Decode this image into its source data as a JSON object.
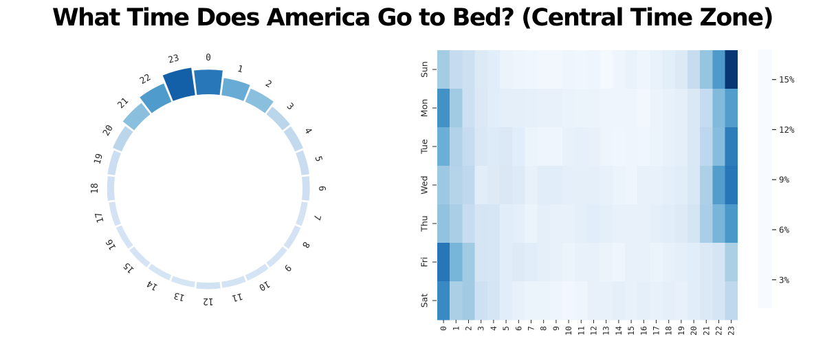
{
  "title": "What Time Does America Go to Bed? (Central Time Zone)",
  "colors": {
    "background": "#ffffff",
    "title_color": "#000000",
    "tick_color": "#262626",
    "colormap_name": "Blues",
    "blues_colormap_stops": [
      [
        0.0,
        "#f7fbff"
      ],
      [
        0.125,
        "#deebf7"
      ],
      [
        0.25,
        "#c6dbef"
      ],
      [
        0.375,
        "#9ecae1"
      ],
      [
        0.5,
        "#6baed6"
      ],
      [
        0.625,
        "#4292c6"
      ],
      [
        0.75,
        "#2171b5"
      ],
      [
        0.875,
        "#08519c"
      ],
      [
        1.0,
        "#08306b"
      ]
    ]
  },
  "chart_data": [
    {
      "type": "bar",
      "subtype": "polar-clock",
      "name": "bedtime-share-by-hour",
      "title": "",
      "categories": [
        "0",
        "1",
        "2",
        "3",
        "4",
        "5",
        "6",
        "7",
        "8",
        "9",
        "10",
        "11",
        "12",
        "13",
        "14",
        "15",
        "16",
        "17",
        "18",
        "19",
        "20",
        "21",
        "22",
        "23"
      ],
      "values": [
        9.4,
        6.6,
        5.5,
        3.7,
        3.4,
        3.0,
        2.8,
        2.4,
        2.4,
        2.3,
        2.3,
        2.4,
        2.5,
        2.2,
        2.2,
        2.3,
        2.3,
        2.4,
        2.7,
        2.9,
        3.7,
        5.5,
        7.6,
        10.6
      ],
      "unit": "%",
      "layout": "hour 0 at top, hours increase clockwise, bars radiate outward from inner ring, bar color maps value on Blues colormap",
      "color_vmin": 0,
      "color_vmax": 13
    },
    {
      "type": "heatmap",
      "name": "bedtime-share-by-day-and-hour",
      "title": "",
      "x": [
        "0",
        "1",
        "2",
        "3",
        "4",
        "5",
        "6",
        "7",
        "8",
        "9",
        "10",
        "11",
        "12",
        "13",
        "14",
        "15",
        "16",
        "17",
        "18",
        "19",
        "20",
        "21",
        "22",
        "23"
      ],
      "y": [
        "Sun",
        "Mon",
        "Tue",
        "Wed",
        "Thu",
        "Fri",
        "Sat"
      ],
      "matrix": [
        [
          6.8,
          5.2,
          4.6,
          3.4,
          3.0,
          2.2,
          2.0,
          1.9,
          1.8,
          1.8,
          2.0,
          1.9,
          2.0,
          1.5,
          2.0,
          2.4,
          2.0,
          2.4,
          2.9,
          3.4,
          5.0,
          7.4,
          10.4,
          16.5
        ],
        [
          11.0,
          7.0,
          4.6,
          3.5,
          3.0,
          2.8,
          2.8,
          2.6,
          2.5,
          2.5,
          2.3,
          2.2,
          2.2,
          2.0,
          2.0,
          2.0,
          1.8,
          2.2,
          2.5,
          2.8,
          3.6,
          5.2,
          8.2,
          10.2
        ],
        [
          9.0,
          6.2,
          5.0,
          3.6,
          3.3,
          3.5,
          3.0,
          2.2,
          2.0,
          2.0,
          2.5,
          2.6,
          2.5,
          2.0,
          1.9,
          2.0,
          1.9,
          2.2,
          2.5,
          2.8,
          3.6,
          5.6,
          8.0,
          12.2
        ],
        [
          7.2,
          6.0,
          5.5,
          3.0,
          3.2,
          3.6,
          3.2,
          2.5,
          3.0,
          3.0,
          2.8,
          2.8,
          2.8,
          2.5,
          2.2,
          2.0,
          2.5,
          2.5,
          2.8,
          3.0,
          3.6,
          6.4,
          10.2,
          12.6
        ],
        [
          7.6,
          6.6,
          5.0,
          4.0,
          3.8,
          3.0,
          2.8,
          2.2,
          2.8,
          2.5,
          2.5,
          2.8,
          3.0,
          2.8,
          2.5,
          2.5,
          2.5,
          2.8,
          3.0,
          3.2,
          4.0,
          6.6,
          8.6,
          10.6
        ],
        [
          12.6,
          8.6,
          7.0,
          4.0,
          3.8,
          3.0,
          3.2,
          3.0,
          2.8,
          2.5,
          2.2,
          2.5,
          2.5,
          2.2,
          2.0,
          2.5,
          2.5,
          2.2,
          2.5,
          2.8,
          3.0,
          3.5,
          4.0,
          6.5
        ],
        [
          11.5,
          6.5,
          7.0,
          4.5,
          4.0,
          3.0,
          2.5,
          2.2,
          2.2,
          2.0,
          1.8,
          2.0,
          2.5,
          2.5,
          2.8,
          2.5,
          2.8,
          2.5,
          2.8,
          2.5,
          3.0,
          3.5,
          4.0,
          5.5
        ]
      ],
      "unit": "%",
      "grid": false,
      "colorbar": {
        "position": "right",
        "vmin": 1.3,
        "vmax": 16.8,
        "tick_labels": [
          "15%",
          "12%",
          "9%",
          "6%",
          "3%"
        ],
        "tick_values": [
          15,
          12,
          9,
          6,
          3
        ]
      }
    }
  ]
}
